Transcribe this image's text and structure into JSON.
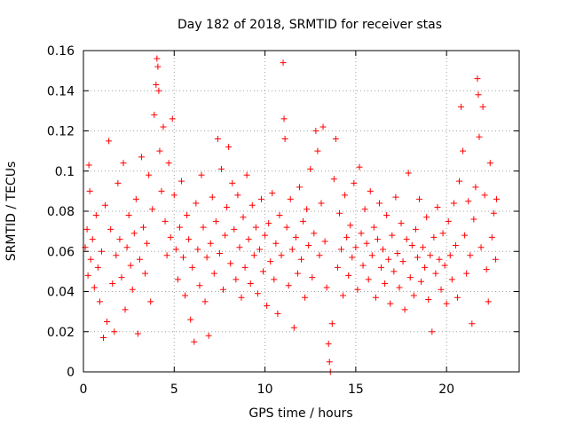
{
  "chart_data": {
    "type": "scatter",
    "title": "Day 182 of 2018, SRMTID for receiver stas",
    "xlabel": "GPS time / hours",
    "ylabel": "SRMTID / TECUs",
    "xlim": [
      0,
      24
    ],
    "ylim": [
      0,
      0.16
    ],
    "xticks": [
      0,
      5,
      10,
      15,
      20
    ],
    "xtick_labels": [
      "0",
      "5",
      "10",
      "15",
      "20"
    ],
    "yticks": [
      0,
      0.02,
      0.04,
      0.06,
      0.08,
      0.1,
      0.12,
      0.14,
      0.16
    ],
    "ytick_labels": [
      "0",
      "0.02",
      "0.04",
      "0.06",
      "0.08",
      "0.1",
      "0.12",
      "0.14",
      "0.16"
    ],
    "grid": true,
    "marker": "+",
    "point_color": "#ff0000",
    "series": [
      {
        "name": "SRMTID",
        "points": [
          [
            0.1,
            0.062
          ],
          [
            0.2,
            0.071
          ],
          [
            0.25,
            0.048
          ],
          [
            0.3,
            0.103
          ],
          [
            0.35,
            0.09
          ],
          [
            0.4,
            0.056
          ],
          [
            0.5,
            0.066
          ],
          [
            0.6,
            0.042
          ],
          [
            0.7,
            0.078
          ],
          [
            0.8,
            0.052
          ],
          [
            0.9,
            0.035
          ],
          [
            1.0,
            0.06
          ],
          [
            1.1,
            0.017
          ],
          [
            1.2,
            0.083
          ],
          [
            1.3,
            0.025
          ],
          [
            1.4,
            0.115
          ],
          [
            1.5,
            0.071
          ],
          [
            1.6,
            0.044
          ],
          [
            1.7,
            0.02
          ],
          [
            1.8,
            0.058
          ],
          [
            1.9,
            0.094
          ],
          [
            2.0,
            0.066
          ],
          [
            2.1,
            0.047
          ],
          [
            2.2,
            0.104
          ],
          [
            2.3,
            0.031
          ],
          [
            2.4,
            0.062
          ],
          [
            2.5,
            0.078
          ],
          [
            2.6,
            0.053
          ],
          [
            2.7,
            0.041
          ],
          [
            2.8,
            0.069
          ],
          [
            2.9,
            0.086
          ],
          [
            3.0,
            0.019
          ],
          [
            3.1,
            0.056
          ],
          [
            3.2,
            0.107
          ],
          [
            3.3,
            0.072
          ],
          [
            3.4,
            0.049
          ],
          [
            3.5,
            0.064
          ],
          [
            3.6,
            0.098
          ],
          [
            3.7,
            0.035
          ],
          [
            3.8,
            0.081
          ],
          [
            3.9,
            0.128
          ],
          [
            4.0,
            0.143
          ],
          [
            4.05,
            0.156
          ],
          [
            4.1,
            0.152
          ],
          [
            4.15,
            0.14
          ],
          [
            4.2,
            0.11
          ],
          [
            4.3,
            0.09
          ],
          [
            4.4,
            0.122
          ],
          [
            4.5,
            0.075
          ],
          [
            4.6,
            0.058
          ],
          [
            4.7,
            0.104
          ],
          [
            4.8,
            0.067
          ],
          [
            4.9,
            0.126
          ],
          [
            5.0,
            0.088
          ],
          [
            5.1,
            0.061
          ],
          [
            5.2,
            0.046
          ],
          [
            5.3,
            0.072
          ],
          [
            5.4,
            0.095
          ],
          [
            5.5,
            0.057
          ],
          [
            5.6,
            0.038
          ],
          [
            5.7,
            0.078
          ],
          [
            5.8,
            0.066
          ],
          [
            5.9,
            0.026
          ],
          [
            6.0,
            0.052
          ],
          [
            6.1,
            0.015
          ],
          [
            6.2,
            0.084
          ],
          [
            6.3,
            0.061
          ],
          [
            6.4,
            0.043
          ],
          [
            6.5,
            0.098
          ],
          [
            6.6,
            0.072
          ],
          [
            6.7,
            0.035
          ],
          [
            6.8,
            0.057
          ],
          [
            6.9,
            0.018
          ],
          [
            7.0,
            0.064
          ],
          [
            7.1,
            0.087
          ],
          [
            7.2,
            0.049
          ],
          [
            7.3,
            0.075
          ],
          [
            7.4,
            0.116
          ],
          [
            7.5,
            0.059
          ],
          [
            7.6,
            0.101
          ],
          [
            7.7,
            0.041
          ],
          [
            7.8,
            0.068
          ],
          [
            7.9,
            0.082
          ],
          [
            8.0,
            0.112
          ],
          [
            8.1,
            0.054
          ],
          [
            8.2,
            0.094
          ],
          [
            8.3,
            0.071
          ],
          [
            8.4,
            0.046
          ],
          [
            8.5,
            0.088
          ],
          [
            8.6,
            0.062
          ],
          [
            8.7,
            0.037
          ],
          [
            8.8,
            0.077
          ],
          [
            8.9,
            0.052
          ],
          [
            9.0,
            0.098
          ],
          [
            9.1,
            0.066
          ],
          [
            9.2,
            0.044
          ],
          [
            9.3,
            0.083
          ],
          [
            9.4,
            0.058
          ],
          [
            9.5,
            0.072
          ],
          [
            9.6,
            0.039
          ],
          [
            9.7,
            0.061
          ],
          [
            9.8,
            0.086
          ],
          [
            9.9,
            0.05
          ],
          [
            10.0,
            0.068
          ],
          [
            10.1,
            0.033
          ],
          [
            10.2,
            0.074
          ],
          [
            10.3,
            0.055
          ],
          [
            10.4,
            0.089
          ],
          [
            10.5,
            0.046
          ],
          [
            10.6,
            0.064
          ],
          [
            10.7,
            0.029
          ],
          [
            10.8,
            0.078
          ],
          [
            10.9,
            0.058
          ],
          [
            11.0,
            0.154
          ],
          [
            11.05,
            0.126
          ],
          [
            11.1,
            0.116
          ],
          [
            11.2,
            0.072
          ],
          [
            11.3,
            0.043
          ],
          [
            11.4,
            0.086
          ],
          [
            11.5,
            0.061
          ],
          [
            11.6,
            0.022
          ],
          [
            11.7,
            0.067
          ],
          [
            11.8,
            0.049
          ],
          [
            11.9,
            0.092
          ],
          [
            12.0,
            0.056
          ],
          [
            12.1,
            0.075
          ],
          [
            12.2,
            0.037
          ],
          [
            12.3,
            0.081
          ],
          [
            12.4,
            0.063
          ],
          [
            12.5,
            0.101
          ],
          [
            12.6,
            0.047
          ],
          [
            12.7,
            0.069
          ],
          [
            12.8,
            0.12
          ],
          [
            12.9,
            0.11
          ],
          [
            13.0,
            0.058
          ],
          [
            13.1,
            0.084
          ],
          [
            13.2,
            0.122
          ],
          [
            13.3,
            0.065
          ],
          [
            13.4,
            0.042
          ],
          [
            13.5,
            0.014
          ],
          [
            13.55,
            0.005
          ],
          [
            13.6,
            0.0
          ],
          [
            13.7,
            0.024
          ],
          [
            13.8,
            0.096
          ],
          [
            13.9,
            0.116
          ],
          [
            14.0,
            0.052
          ],
          [
            14.1,
            0.079
          ],
          [
            14.2,
            0.061
          ],
          [
            14.3,
            0.038
          ],
          [
            14.4,
            0.088
          ],
          [
            14.5,
            0.067
          ],
          [
            14.6,
            0.048
          ],
          [
            14.7,
            0.073
          ],
          [
            14.8,
            0.057
          ],
          [
            14.9,
            0.094
          ],
          [
            15.0,
            0.062
          ],
          [
            15.1,
            0.041
          ],
          [
            15.2,
            0.102
          ],
          [
            15.3,
            0.069
          ],
          [
            15.4,
            0.053
          ],
          [
            15.5,
            0.081
          ],
          [
            15.6,
            0.064
          ],
          [
            15.7,
            0.046
          ],
          [
            15.8,
            0.09
          ],
          [
            15.9,
            0.058
          ],
          [
            16.0,
            0.072
          ],
          [
            16.1,
            0.037
          ],
          [
            16.2,
            0.066
          ],
          [
            16.3,
            0.084
          ],
          [
            16.4,
            0.052
          ],
          [
            16.5,
            0.061
          ],
          [
            16.6,
            0.044
          ],
          [
            16.7,
            0.078
          ],
          [
            16.8,
            0.056
          ],
          [
            16.9,
            0.034
          ],
          [
            17.0,
            0.068
          ],
          [
            17.1,
            0.05
          ],
          [
            17.2,
            0.087
          ],
          [
            17.3,
            0.059
          ],
          [
            17.4,
            0.042
          ],
          [
            17.5,
            0.074
          ],
          [
            17.6,
            0.055
          ],
          [
            17.7,
            0.031
          ],
          [
            17.8,
            0.066
          ],
          [
            17.9,
            0.099
          ],
          [
            18.0,
            0.047
          ],
          [
            18.1,
            0.063
          ],
          [
            18.2,
            0.038
          ],
          [
            18.3,
            0.071
          ],
          [
            18.4,
            0.057
          ],
          [
            18.5,
            0.086
          ],
          [
            18.6,
            0.045
          ],
          [
            18.7,
            0.062
          ],
          [
            18.8,
            0.052
          ],
          [
            18.9,
            0.077
          ],
          [
            19.0,
            0.036
          ],
          [
            19.1,
            0.058
          ],
          [
            19.2,
            0.02
          ],
          [
            19.3,
            0.067
          ],
          [
            19.4,
            0.049
          ],
          [
            19.5,
            0.082
          ],
          [
            19.6,
            0.056
          ],
          [
            19.7,
            0.041
          ],
          [
            19.8,
            0.069
          ],
          [
            19.9,
            0.053
          ],
          [
            20.0,
            0.034
          ],
          [
            20.1,
            0.075
          ],
          [
            20.2,
            0.058
          ],
          [
            20.3,
            0.046
          ],
          [
            20.4,
            0.084
          ],
          [
            20.5,
            0.063
          ],
          [
            20.6,
            0.037
          ],
          [
            20.7,
            0.095
          ],
          [
            20.8,
            0.132
          ],
          [
            20.9,
            0.11
          ],
          [
            21.0,
            0.068
          ],
          [
            21.1,
            0.049
          ],
          [
            21.2,
            0.085
          ],
          [
            21.3,
            0.058
          ],
          [
            21.4,
            0.024
          ],
          [
            21.5,
            0.076
          ],
          [
            21.6,
            0.092
          ],
          [
            21.7,
            0.146
          ],
          [
            21.75,
            0.138
          ],
          [
            21.8,
            0.117
          ],
          [
            21.9,
            0.062
          ],
          [
            22.0,
            0.132
          ],
          [
            22.1,
            0.088
          ],
          [
            22.2,
            0.051
          ],
          [
            22.3,
            0.035
          ],
          [
            22.4,
            0.104
          ],
          [
            22.5,
            0.067
          ],
          [
            22.6,
            0.079
          ],
          [
            22.7,
            0.056
          ],
          [
            22.75,
            0.086
          ]
        ]
      }
    ]
  }
}
